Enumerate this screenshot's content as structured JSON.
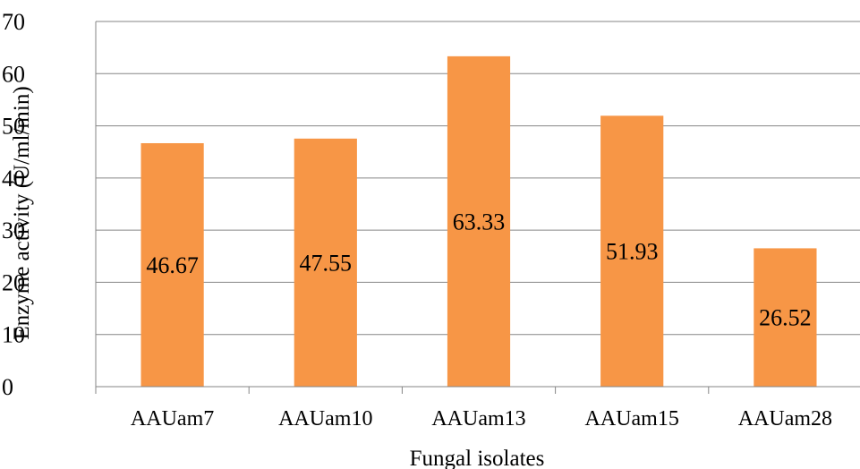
{
  "chart_data": {
    "type": "bar",
    "categories": [
      "AAUam7",
      "AAUam10",
      "AAUam13",
      "AAUam15",
      "AAUam28"
    ],
    "values": [
      46.67,
      47.55,
      63.33,
      51.93,
      26.52
    ],
    "data_labels": [
      "46.67",
      "47.55",
      "63.33",
      "51.93",
      "26.52"
    ],
    "xlabel": "Fungal isolates",
    "ylabel": "Enzyme activity (U/ml/min)",
    "ylim": [
      0,
      70
    ],
    "yticks": [
      "0",
      "10",
      "20",
      "30",
      "40",
      "50",
      "60",
      "70"
    ],
    "bar_color": "#F79646",
    "grid": "horizontal",
    "legend": "none"
  }
}
